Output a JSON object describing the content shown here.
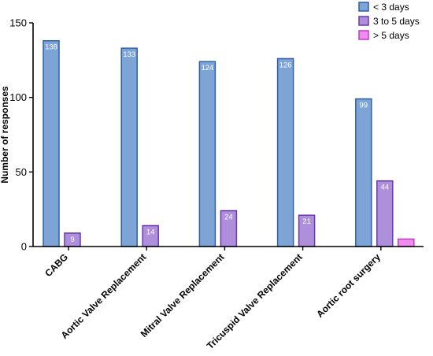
{
  "chart_data": {
    "type": "bar",
    "title": "",
    "xlabel": "",
    "ylabel": "Number of responses",
    "ylim": [
      0,
      150
    ],
    "yticks": [
      0,
      50,
      100,
      150
    ],
    "categories": [
      "CABG",
      "Aortic Valve Replacement",
      "Mitral Valve Replacement",
      "Tricuspid Valve Replacement",
      "Aortic root surgery"
    ],
    "series": [
      {
        "name": "< 3 days",
        "values": [
          138,
          133,
          124,
          126,
          99
        ],
        "labels": [
          "138",
          "133",
          "124",
          "126",
          "99"
        ],
        "fill": "#7ea4d6",
        "stroke": "#2f5fa8"
      },
      {
        "name": "3 to 5 days",
        "values": [
          9,
          14,
          24,
          21,
          44
        ],
        "labels": [
          "9",
          "14",
          "24",
          "21",
          "44"
        ],
        "fill": "#ad8fdc",
        "stroke": "#6a38b0"
      },
      {
        "name": "> 5 days",
        "values": [
          0,
          0,
          0,
          0,
          5
        ],
        "labels": [
          "",
          "",
          "",
          "",
          ""
        ],
        "fill": "#f08cf0",
        "stroke": "#c23ac2"
      }
    ],
    "grid": false,
    "legend_position": "top-right"
  }
}
